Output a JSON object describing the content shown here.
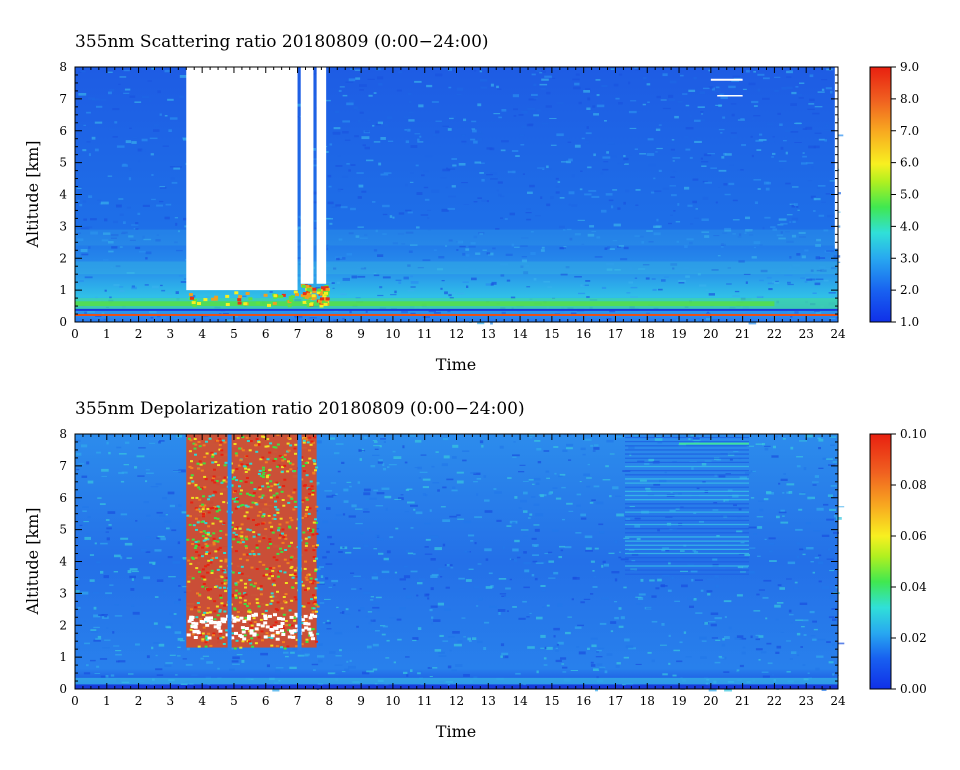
{
  "chart_data": [
    {
      "type": "heatmap",
      "title": "355nm Scattering ratio  20180809 (0:00−24:00)",
      "xlabel": "Time",
      "ylabel": "Altitude [km]",
      "xlim": [
        0,
        24
      ],
      "ylim": [
        0,
        8
      ],
      "x_ticks": [
        "0",
        "1",
        "2",
        "3",
        "4",
        "5",
        "6",
        "7",
        "8",
        "9",
        "10",
        "11",
        "12",
        "13",
        "14",
        "15",
        "16",
        "17",
        "18",
        "19",
        "20",
        "21",
        "22",
        "23",
        "24"
      ],
      "y_ticks": [
        "0",
        "1",
        "2",
        "3",
        "4",
        "5",
        "6",
        "7",
        "8"
      ],
      "colorbar": {
        "range": [
          1.0,
          9.0
        ],
        "ticks": [
          "1.0",
          "2.0",
          "3.0",
          "4.0",
          "5.0",
          "6.0",
          "7.0",
          "8.0",
          "9.0"
        ]
      },
      "features": {
        "saturated_cloud_blocks": [
          [
            3.5,
            7.0
          ],
          [
            7.1,
            7.5
          ],
          [
            7.6,
            7.9
          ]
        ],
        "boundary_layer_top_km": 0.8,
        "data_gap_lines": [
          [
            20.0,
            21.0
          ]
        ]
      }
    },
    {
      "type": "heatmap",
      "title": "355nm Depolarization ratio  20180809 (0:00−24:00)",
      "xlabel": "Time",
      "ylabel": "Altitude [km]",
      "xlim": [
        0,
        24
      ],
      "ylim": [
        0,
        8
      ],
      "x_ticks": [
        "0",
        "1",
        "2",
        "3",
        "4",
        "5",
        "6",
        "7",
        "8",
        "9",
        "10",
        "11",
        "12",
        "13",
        "14",
        "15",
        "16",
        "17",
        "18",
        "19",
        "20",
        "21",
        "22",
        "23",
        "24"
      ],
      "y_ticks": [
        "0",
        "1",
        "2",
        "3",
        "4",
        "5",
        "6",
        "7",
        "8"
      ],
      "colorbar": {
        "range": [
          0.0,
          0.1
        ],
        "ticks": [
          "0.00",
          "0.02",
          "0.04",
          "0.06",
          "0.08",
          "0.10"
        ]
      },
      "features": {
        "high_depol_region": [
          3.5,
          7.6
        ],
        "streaky_region": [
          17.3,
          21.2
        ]
      }
    }
  ],
  "colors": {
    "low": "#1a3ee0",
    "mid": "#2aa0e8",
    "cyan": "#3cd8d0",
    "green": "#40e030",
    "yellow": "#f0e020",
    "orange": "#f08020",
    "high": "#e82810"
  }
}
